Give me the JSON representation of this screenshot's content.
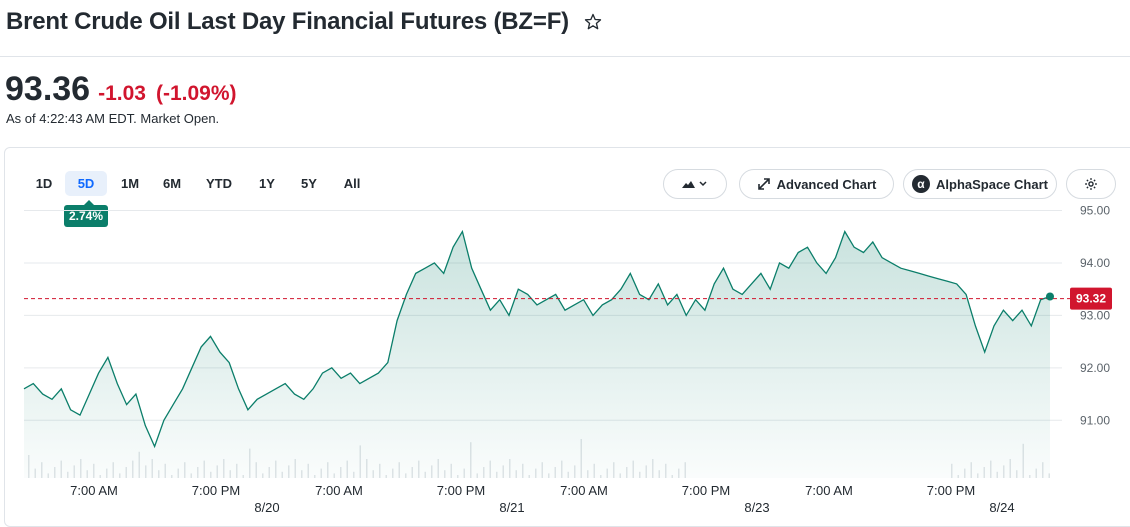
{
  "header": {
    "title": "Brent Crude Oil Last Day Financial Futures (BZ=F)",
    "star_icon": "star-outline-icon"
  },
  "quote": {
    "price": "93.36",
    "change": "-1.03",
    "change_pct": "(-1.09%)",
    "as_of": "As of 4:22:43 AM EDT. Market Open.",
    "change_color": "#d1152e"
  },
  "toolbar": {
    "ranges": [
      "1D",
      "5D",
      "1M",
      "6M",
      "YTD",
      "1Y",
      "5Y",
      "All"
    ],
    "active_range": "5D",
    "range_change": "2.74%",
    "chart_type_icon": "mountain-chart-icon",
    "advanced_chart_label": "Advanced Chart",
    "alphaspace_label": "AlphaSpace Chart",
    "settings_icon": "gear-icon"
  },
  "chart_data": {
    "type": "area",
    "line_color": "#0b7e6a",
    "reference_line": {
      "value": 93.32,
      "label": "93.32",
      "color": "#d1152e",
      "style": "dashed"
    },
    "y_ticks": [
      95.0,
      94.0,
      93.0,
      92.0,
      91.0
    ],
    "y_tick_labels": [
      "95.00",
      "94.00",
      "93.00",
      "92.00",
      "91.00"
    ],
    "ylim": [
      89.9,
      95.2
    ],
    "x_tick_labels": [
      "7:00 AM",
      "7:00 PM",
      "7:00 AM",
      "7:00 PM",
      "7:00 AM",
      "7:00 PM",
      "7:00 AM",
      "7:00 PM"
    ],
    "x_date_labels": [
      "8/20",
      "8/21",
      "8/23",
      "8/24"
    ],
    "grid": true,
    "series": [
      {
        "values": [
          91.6,
          91.7,
          91.5,
          91.4,
          91.6,
          91.2,
          91.1,
          91.5,
          91.9,
          92.2,
          91.7,
          91.3,
          91.5,
          90.9,
          90.5,
          91.0,
          91.3,
          91.6,
          92.0,
          92.4,
          92.6,
          92.3,
          92.1,
          91.6,
          91.2,
          91.4,
          91.5,
          91.6,
          91.7,
          91.5,
          91.4,
          91.6,
          91.9,
          92.0,
          91.8,
          91.9,
          91.7,
          91.8,
          91.9,
          92.1,
          92.9,
          93.4,
          93.8,
          93.9,
          94.0,
          93.8,
          94.3,
          94.6,
          93.9,
          93.5,
          93.1,
          93.3,
          93.0,
          93.5,
          93.4,
          93.2,
          93.3,
          93.4,
          93.1,
          93.2,
          93.3,
          93.0,
          93.2,
          93.3,
          93.5,
          93.8,
          93.4,
          93.3,
          93.6,
          93.2,
          93.4,
          93.0,
          93.3,
          93.1,
          93.6,
          93.9,
          93.5,
          93.4,
          93.6,
          93.8,
          93.5,
          94.0,
          93.9,
          94.2,
          94.3,
          94.0,
          93.8,
          94.1,
          94.6,
          94.3,
          94.2,
          94.4,
          94.1,
          94.0,
          93.9,
          93.85,
          93.8,
          93.75,
          93.7,
          93.65,
          93.6,
          93.4,
          92.8,
          92.3,
          92.8,
          93.1,
          92.9,
          93.1,
          92.8,
          93.3,
          93.36
        ]
      }
    ]
  }
}
